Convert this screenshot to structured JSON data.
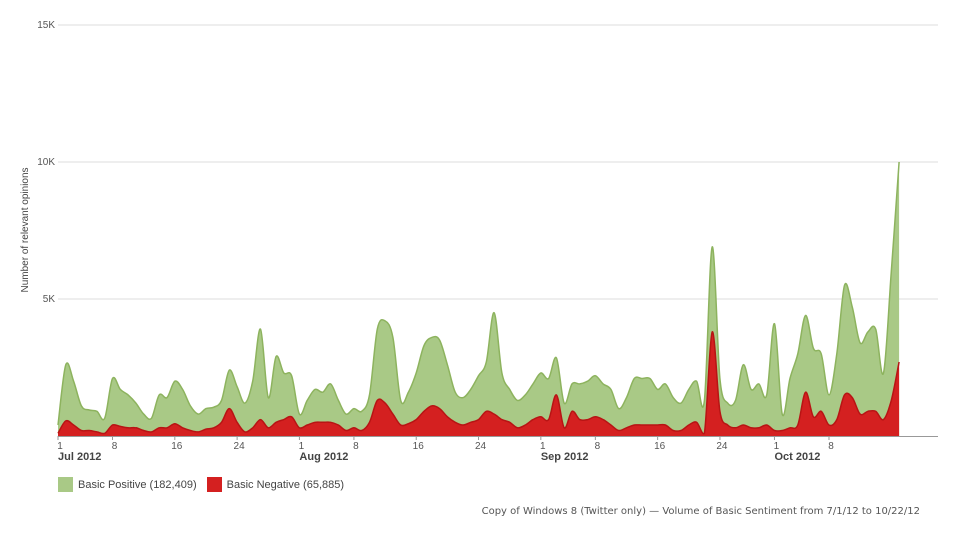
{
  "chart_data": {
    "type": "area",
    "ylabel": "Number of relevant opinions",
    "ylim": [
      0,
      15000
    ],
    "y_ticks": [
      {
        "value": 5000,
        "label": "5K"
      },
      {
        "value": 10000,
        "label": "10K"
      },
      {
        "value": 15000,
        "label": "15K"
      }
    ],
    "x_start": "2012-07-01",
    "x_end": "2012-10-22",
    "x_ticks": [
      {
        "date": "2012-07-01",
        "label": "1"
      },
      {
        "date": "2012-07-08",
        "label": "8"
      },
      {
        "date": "2012-07-16",
        "label": "16"
      },
      {
        "date": "2012-07-24",
        "label": "24"
      },
      {
        "date": "2012-08-01",
        "label": "1"
      },
      {
        "date": "2012-08-08",
        "label": "8"
      },
      {
        "date": "2012-08-16",
        "label": "16"
      },
      {
        "date": "2012-08-24",
        "label": "24"
      },
      {
        "date": "2012-09-01",
        "label": "1"
      },
      {
        "date": "2012-09-08",
        "label": "8"
      },
      {
        "date": "2012-09-16",
        "label": "16"
      },
      {
        "date": "2012-09-24",
        "label": "24"
      },
      {
        "date": "2012-10-01",
        "label": "1"
      },
      {
        "date": "2012-10-08",
        "label": "8"
      }
    ],
    "month_labels": [
      {
        "date": "2012-07-01",
        "label": "Jul 2012"
      },
      {
        "date": "2012-08-01",
        "label": "Aug 2012"
      },
      {
        "date": "2012-09-01",
        "label": "Sep 2012"
      },
      {
        "date": "2012-10-01",
        "label": "Oct 2012"
      }
    ],
    "series": [
      {
        "name": "Basic Positive (182,409)",
        "color": "#8db35e",
        "fill": "#a9c986",
        "points": [
          [
            "2012-07-01",
            400
          ],
          [
            "2012-07-02",
            2600
          ],
          [
            "2012-07-03",
            2000
          ],
          [
            "2012-07-04",
            1100
          ],
          [
            "2012-07-05",
            950
          ],
          [
            "2012-07-06",
            900
          ],
          [
            "2012-07-07",
            650
          ],
          [
            "2012-07-08",
            2100
          ],
          [
            "2012-07-09",
            1700
          ],
          [
            "2012-07-10",
            1500
          ],
          [
            "2012-07-11",
            1200
          ],
          [
            "2012-07-12",
            800
          ],
          [
            "2012-07-13",
            650
          ],
          [
            "2012-07-14",
            1500
          ],
          [
            "2012-07-15",
            1400
          ],
          [
            "2012-07-16",
            2000
          ],
          [
            "2012-07-17",
            1700
          ],
          [
            "2012-07-18",
            1100
          ],
          [
            "2012-07-19",
            800
          ],
          [
            "2012-07-20",
            1000
          ],
          [
            "2012-07-21",
            1050
          ],
          [
            "2012-07-22",
            1300
          ],
          [
            "2012-07-23",
            2400
          ],
          [
            "2012-07-24",
            1800
          ],
          [
            "2012-07-25",
            1200
          ],
          [
            "2012-07-26",
            2000
          ],
          [
            "2012-07-27",
            3900
          ],
          [
            "2012-07-28",
            1400
          ],
          [
            "2012-07-29",
            2900
          ],
          [
            "2012-07-30",
            2300
          ],
          [
            "2012-07-31",
            2200
          ],
          [
            "2012-08-01",
            800
          ],
          [
            "2012-08-02",
            1300
          ],
          [
            "2012-08-03",
            1700
          ],
          [
            "2012-08-04",
            1600
          ],
          [
            "2012-08-05",
            1900
          ],
          [
            "2012-08-06",
            1300
          ],
          [
            "2012-08-07",
            800
          ],
          [
            "2012-08-08",
            1000
          ],
          [
            "2012-08-09",
            900
          ],
          [
            "2012-08-10",
            1500
          ],
          [
            "2012-08-11",
            3900
          ],
          [
            "2012-08-12",
            4200
          ],
          [
            "2012-08-13",
            3600
          ],
          [
            "2012-08-14",
            1300
          ],
          [
            "2012-08-15",
            1600
          ],
          [
            "2012-08-16",
            2300
          ],
          [
            "2012-08-17",
            3300
          ],
          [
            "2012-08-18",
            3600
          ],
          [
            "2012-08-19",
            3500
          ],
          [
            "2012-08-20",
            2600
          ],
          [
            "2012-08-21",
            1600
          ],
          [
            "2012-08-22",
            1400
          ],
          [
            "2012-08-23",
            1700
          ],
          [
            "2012-08-24",
            2200
          ],
          [
            "2012-08-25",
            2700
          ],
          [
            "2012-08-26",
            4500
          ],
          [
            "2012-08-27",
            2300
          ],
          [
            "2012-08-28",
            1700
          ],
          [
            "2012-08-29",
            1300
          ],
          [
            "2012-08-30",
            1500
          ],
          [
            "2012-08-31",
            1900
          ],
          [
            "2012-09-01",
            2300
          ],
          [
            "2012-09-02",
            2100
          ],
          [
            "2012-09-03",
            2850
          ],
          [
            "2012-09-04",
            1200
          ],
          [
            "2012-09-05",
            1900
          ],
          [
            "2012-09-06",
            1900
          ],
          [
            "2012-09-07",
            2000
          ],
          [
            "2012-09-08",
            2200
          ],
          [
            "2012-09-09",
            1900
          ],
          [
            "2012-09-10",
            1700
          ],
          [
            "2012-09-11",
            1000
          ],
          [
            "2012-09-12",
            1400
          ],
          [
            "2012-09-13",
            2100
          ],
          [
            "2012-09-14",
            2100
          ],
          [
            "2012-09-15",
            2100
          ],
          [
            "2012-09-16",
            1700
          ],
          [
            "2012-09-17",
            1900
          ],
          [
            "2012-09-18",
            1400
          ],
          [
            "2012-09-19",
            1200
          ],
          [
            "2012-09-20",
            1700
          ],
          [
            "2012-09-21",
            2000
          ],
          [
            "2012-09-22",
            1300
          ],
          [
            "2012-09-23",
            6900
          ],
          [
            "2012-09-24",
            2100
          ],
          [
            "2012-09-25",
            1200
          ],
          [
            "2012-09-26",
            1300
          ],
          [
            "2012-09-27",
            2600
          ],
          [
            "2012-09-28",
            1700
          ],
          [
            "2012-09-29",
            1900
          ],
          [
            "2012-09-30",
            1500
          ],
          [
            "2012-10-01",
            4100
          ],
          [
            "2012-10-02",
            800
          ],
          [
            "2012-10-03",
            2100
          ],
          [
            "2012-10-04",
            3000
          ],
          [
            "2012-10-05",
            4400
          ],
          [
            "2012-10-06",
            3200
          ],
          [
            "2012-10-07",
            3000
          ],
          [
            "2012-10-08",
            1500
          ],
          [
            "2012-10-09",
            3000
          ],
          [
            "2012-10-10",
            5500
          ],
          [
            "2012-10-11",
            4700
          ],
          [
            "2012-10-12",
            3400
          ],
          [
            "2012-10-13",
            3800
          ],
          [
            "2012-10-14",
            3900
          ],
          [
            "2012-10-15",
            2300
          ],
          [
            "2012-10-16",
            6000
          ],
          [
            "2012-10-17",
            10000
          ]
        ]
      },
      {
        "name": "Basic Negative (65,885)",
        "color": "#b81414",
        "fill": "#d42020",
        "points": [
          [
            "2012-07-01",
            100
          ],
          [
            "2012-07-02",
            550
          ],
          [
            "2012-07-03",
            400
          ],
          [
            "2012-07-04",
            200
          ],
          [
            "2012-07-05",
            200
          ],
          [
            "2012-07-06",
            150
          ],
          [
            "2012-07-07",
            100
          ],
          [
            "2012-07-08",
            400
          ],
          [
            "2012-07-09",
            350
          ],
          [
            "2012-07-10",
            300
          ],
          [
            "2012-07-11",
            300
          ],
          [
            "2012-07-12",
            200
          ],
          [
            "2012-07-13",
            150
          ],
          [
            "2012-07-14",
            300
          ],
          [
            "2012-07-15",
            300
          ],
          [
            "2012-07-16",
            450
          ],
          [
            "2012-07-17",
            300
          ],
          [
            "2012-07-18",
            200
          ],
          [
            "2012-07-19",
            150
          ],
          [
            "2012-07-20",
            250
          ],
          [
            "2012-07-21",
            300
          ],
          [
            "2012-07-22",
            500
          ],
          [
            "2012-07-23",
            1000
          ],
          [
            "2012-07-24",
            500
          ],
          [
            "2012-07-25",
            150
          ],
          [
            "2012-07-26",
            300
          ],
          [
            "2012-07-27",
            600
          ],
          [
            "2012-07-28",
            300
          ],
          [
            "2012-07-29",
            500
          ],
          [
            "2012-07-30",
            600
          ],
          [
            "2012-07-31",
            700
          ],
          [
            "2012-08-01",
            300
          ],
          [
            "2012-08-02",
            400
          ],
          [
            "2012-08-03",
            500
          ],
          [
            "2012-08-04",
            500
          ],
          [
            "2012-08-05",
            500
          ],
          [
            "2012-08-06",
            400
          ],
          [
            "2012-08-07",
            200
          ],
          [
            "2012-08-08",
            300
          ],
          [
            "2012-08-09",
            200
          ],
          [
            "2012-08-10",
            500
          ],
          [
            "2012-08-11",
            1300
          ],
          [
            "2012-08-12",
            1200
          ],
          [
            "2012-08-13",
            800
          ],
          [
            "2012-08-14",
            400
          ],
          [
            "2012-08-15",
            450
          ],
          [
            "2012-08-16",
            600
          ],
          [
            "2012-08-17",
            900
          ],
          [
            "2012-08-18",
            1100
          ],
          [
            "2012-08-19",
            1000
          ],
          [
            "2012-08-20",
            700
          ],
          [
            "2012-08-21",
            500
          ],
          [
            "2012-08-22",
            400
          ],
          [
            "2012-08-23",
            500
          ],
          [
            "2012-08-24",
            600
          ],
          [
            "2012-08-25",
            900
          ],
          [
            "2012-08-26",
            800
          ],
          [
            "2012-08-27",
            600
          ],
          [
            "2012-08-28",
            500
          ],
          [
            "2012-08-29",
            300
          ],
          [
            "2012-08-30",
            400
          ],
          [
            "2012-08-31",
            600
          ],
          [
            "2012-09-01",
            700
          ],
          [
            "2012-09-02",
            600
          ],
          [
            "2012-09-03",
            1500
          ],
          [
            "2012-09-04",
            300
          ],
          [
            "2012-09-05",
            900
          ],
          [
            "2012-09-06",
            600
          ],
          [
            "2012-09-07",
            600
          ],
          [
            "2012-09-08",
            700
          ],
          [
            "2012-09-09",
            600
          ],
          [
            "2012-09-10",
            400
          ],
          [
            "2012-09-11",
            200
          ],
          [
            "2012-09-12",
            300
          ],
          [
            "2012-09-13",
            400
          ],
          [
            "2012-09-14",
            400
          ],
          [
            "2012-09-15",
            400
          ],
          [
            "2012-09-16",
            400
          ],
          [
            "2012-09-17",
            400
          ],
          [
            "2012-09-18",
            200
          ],
          [
            "2012-09-19",
            200
          ],
          [
            "2012-09-20",
            400
          ],
          [
            "2012-09-21",
            500
          ],
          [
            "2012-09-22",
            100
          ],
          [
            "2012-09-23",
            3800
          ],
          [
            "2012-09-24",
            900
          ],
          [
            "2012-09-25",
            400
          ],
          [
            "2012-09-26",
            300
          ],
          [
            "2012-09-27",
            400
          ],
          [
            "2012-09-28",
            300
          ],
          [
            "2012-09-29",
            300
          ],
          [
            "2012-09-30",
            400
          ],
          [
            "2012-10-01",
            200
          ],
          [
            "2012-10-02",
            200
          ],
          [
            "2012-10-03",
            300
          ],
          [
            "2012-10-04",
            400
          ],
          [
            "2012-10-05",
            1600
          ],
          [
            "2012-10-06",
            700
          ],
          [
            "2012-10-07",
            900
          ],
          [
            "2012-10-08",
            400
          ],
          [
            "2012-10-09",
            600
          ],
          [
            "2012-10-10",
            1500
          ],
          [
            "2012-10-11",
            1400
          ],
          [
            "2012-10-12",
            800
          ],
          [
            "2012-10-13",
            900
          ],
          [
            "2012-10-14",
            900
          ],
          [
            "2012-10-15",
            600
          ],
          [
            "2012-10-16",
            1300
          ],
          [
            "2012-10-17",
            2700
          ]
        ]
      }
    ],
    "legend_position": "bottom-left",
    "grid": true,
    "caption": "Copy of Windows 8 (Twitter only) — Volume of Basic Sentiment from 7/1/12 to 10/22/12"
  }
}
